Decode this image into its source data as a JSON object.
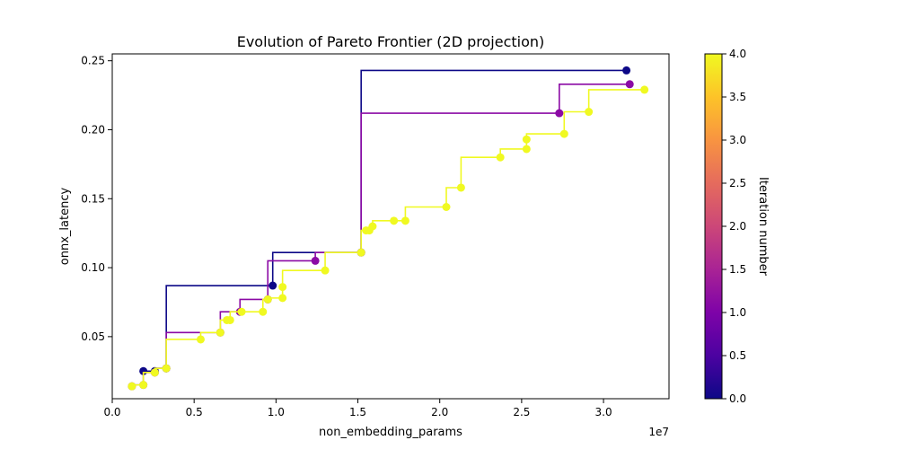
{
  "chart_data": {
    "type": "line",
    "title": "Evolution of Pareto Frontier (2D projection)",
    "xlabel": "non_embedding_params",
    "ylabel": "onnx_latency",
    "x_offset_label": "1e7",
    "xlim": [
      0,
      34000000
    ],
    "ylim": [
      0.005,
      0.255
    ],
    "x_ticks": [
      0,
      5000000,
      10000000,
      15000000,
      20000000,
      25000000,
      30000000
    ],
    "x_tick_labels": [
      "0.0",
      "0.5",
      "1.0",
      "1.5",
      "2.0",
      "2.5",
      "3.0"
    ],
    "y_ticks": [
      0.05,
      0.1,
      0.15,
      0.2,
      0.25
    ],
    "y_tick_labels": [
      "0.05",
      "0.10",
      "0.15",
      "0.20",
      "0.25"
    ],
    "grid": false,
    "colorbar": {
      "label": "Iteration number",
      "range": [
        0,
        4
      ],
      "colormap": "plasma",
      "ticks": [
        0,
        0.5,
        1,
        1.5,
        2,
        2.5,
        3,
        3.5,
        4
      ],
      "tick_labels": [
        "0.0",
        "0.5",
        "1.0",
        "1.5",
        "2.0",
        "2.5",
        "3.0",
        "3.5",
        "4.0"
      ]
    },
    "series": [
      {
        "iteration": 0,
        "color": "#0d0887",
        "points": [
          [
            1900000,
            0.025
          ],
          [
            2600000,
            0.025
          ],
          [
            3300000,
            0.027
          ],
          [
            9800000,
            0.087
          ],
          [
            15200000,
            0.111
          ],
          [
            31400000,
            0.243
          ]
        ]
      },
      {
        "iteration": 1,
        "color": "#8b0aa5",
        "points": [
          [
            1200000,
            0.014
          ],
          [
            1900000,
            0.015
          ],
          [
            2600000,
            0.024
          ],
          [
            3300000,
            0.027
          ],
          [
            6600000,
            0.053
          ],
          [
            7800000,
            0.068
          ],
          [
            9500000,
            0.077
          ],
          [
            12400000,
            0.105
          ],
          [
            15200000,
            0.111
          ],
          [
            27300000,
            0.212
          ],
          [
            31600000,
            0.233
          ]
        ]
      },
      {
        "iteration": 4,
        "color": "#f0f921",
        "points": [
          [
            1200000,
            0.014
          ],
          [
            1900000,
            0.015
          ],
          [
            2600000,
            0.024
          ],
          [
            3300000,
            0.027
          ],
          [
            5400000,
            0.048
          ],
          [
            6600000,
            0.053
          ],
          [
            7000000,
            0.062
          ],
          [
            7200000,
            0.062
          ],
          [
            7900000,
            0.068
          ],
          [
            9200000,
            0.068
          ],
          [
            9500000,
            0.077
          ],
          [
            10400000,
            0.078
          ],
          [
            10400000,
            0.086
          ],
          [
            13000000,
            0.098
          ],
          [
            15200000,
            0.111
          ],
          [
            15500000,
            0.127
          ],
          [
            15700000,
            0.127
          ],
          [
            15900000,
            0.13
          ],
          [
            17200000,
            0.134
          ],
          [
            17900000,
            0.134
          ],
          [
            20400000,
            0.144
          ],
          [
            21300000,
            0.158
          ],
          [
            23700000,
            0.18
          ],
          [
            25300000,
            0.186
          ],
          [
            25300000,
            0.193
          ],
          [
            27600000,
            0.197
          ],
          [
            29100000,
            0.213
          ],
          [
            32500000,
            0.229
          ]
        ]
      }
    ]
  }
}
